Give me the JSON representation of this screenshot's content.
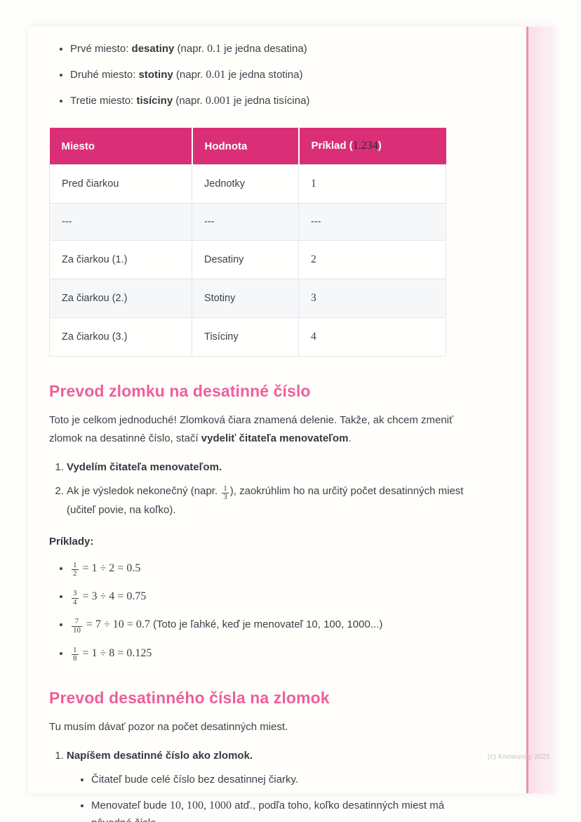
{
  "theme": {
    "table_header_bg": "#da2f77",
    "heading_pink": "#ee5f9b",
    "stripe_pink": "#f9dce8",
    "stripe_edge_pink": "#e793b3",
    "body_text": "#3c4148",
    "alt_row_bg": "#f6f7f9"
  },
  "intro": [
    {
      "pre": "Prvé miesto: ",
      "bold": "desatiny",
      "mid": " (napr. ",
      "math": "0.1",
      "post": " je jedna desatina)"
    },
    {
      "pre": "Druhé miesto: ",
      "bold": "stotiny",
      "mid": " (napr. ",
      "math": "0.01",
      "post": " je jedna stotina)"
    },
    {
      "pre": "Tretie miesto: ",
      "bold": "tisíciny",
      "mid": " (napr. ",
      "math": "0.001",
      "post": " je jedna tisícina)"
    }
  ],
  "table": {
    "headers": {
      "col1": "Miesto",
      "col2": "Hodnota",
      "col3_pre": "Príklad (",
      "col3_math": "1.234",
      "col3_post": ")"
    },
    "rows": [
      [
        "Pred čiarkou",
        "Jednotky",
        "1"
      ],
      [
        "---",
        "---",
        "---"
      ],
      [
        "Za čiarkou (1.)",
        "Desatiny",
        "2"
      ],
      [
        "Za čiarkou (2.)",
        "Stotiny",
        "3"
      ],
      [
        "Za čiarkou (3.)",
        "Tisíciny",
        "4"
      ]
    ]
  },
  "section1": {
    "title": "Prevod zlomku na desatinné číslo",
    "para_pre": "Toto je celkom jednoduché! Zlomková čiara znamená delenie. Takže, ak chcem zmeniť zlomok na desatinné číslo, stačí ",
    "para_bold": "vydeliť čitateľa menovateľom",
    "para_post": ".",
    "step1_bold": "Vydelím čitateľa menovateľom.",
    "step2_pre": "Ak je výsledok nekonečný (napr. ",
    "step2_frac": {
      "num": "1",
      "den": "3"
    },
    "step2_post": "), zaokrúhlim ho na určitý počet desatinných miest (učiteľ povie, na koľko).",
    "examples_label": "Príklady:",
    "examples": [
      {
        "frac": {
          "num": "1",
          "den": "2"
        },
        "math": " = 1 ÷ 2 = 0.5",
        "note": ""
      },
      {
        "frac": {
          "num": "3",
          "den": "4"
        },
        "math": " = 3 ÷ 4 = 0.75",
        "note": ""
      },
      {
        "frac": {
          "num": "7",
          "den": "10"
        },
        "math": " = 7 ÷ 10 = 0.7",
        "note": " (Toto je ľahké, keď je menovateľ 10, 100, 1000...)"
      },
      {
        "frac": {
          "num": "1",
          "den": "8"
        },
        "math": " = 1 ÷ 8 = 0.125",
        "note": ""
      }
    ]
  },
  "section2": {
    "title": "Prevod desatinného čísla na zlomok",
    "para": "Tu musím dávať pozor na počet desatinných miest.",
    "step1_bold": "Napíšem desatinné číslo ako zlomok.",
    "subs": [
      {
        "pre": "Čitateľ bude celé číslo bez desatinnej čiarky.",
        "math": "",
        "post": ""
      },
      {
        "pre": "Menovateľ bude ",
        "math": "10, 100, 1000",
        "post": " atď., podľa toho, koľko desatinných miest má pôvodné číslo."
      }
    ]
  },
  "page": {
    "watermark": "(c) Knowunity 2025"
  }
}
